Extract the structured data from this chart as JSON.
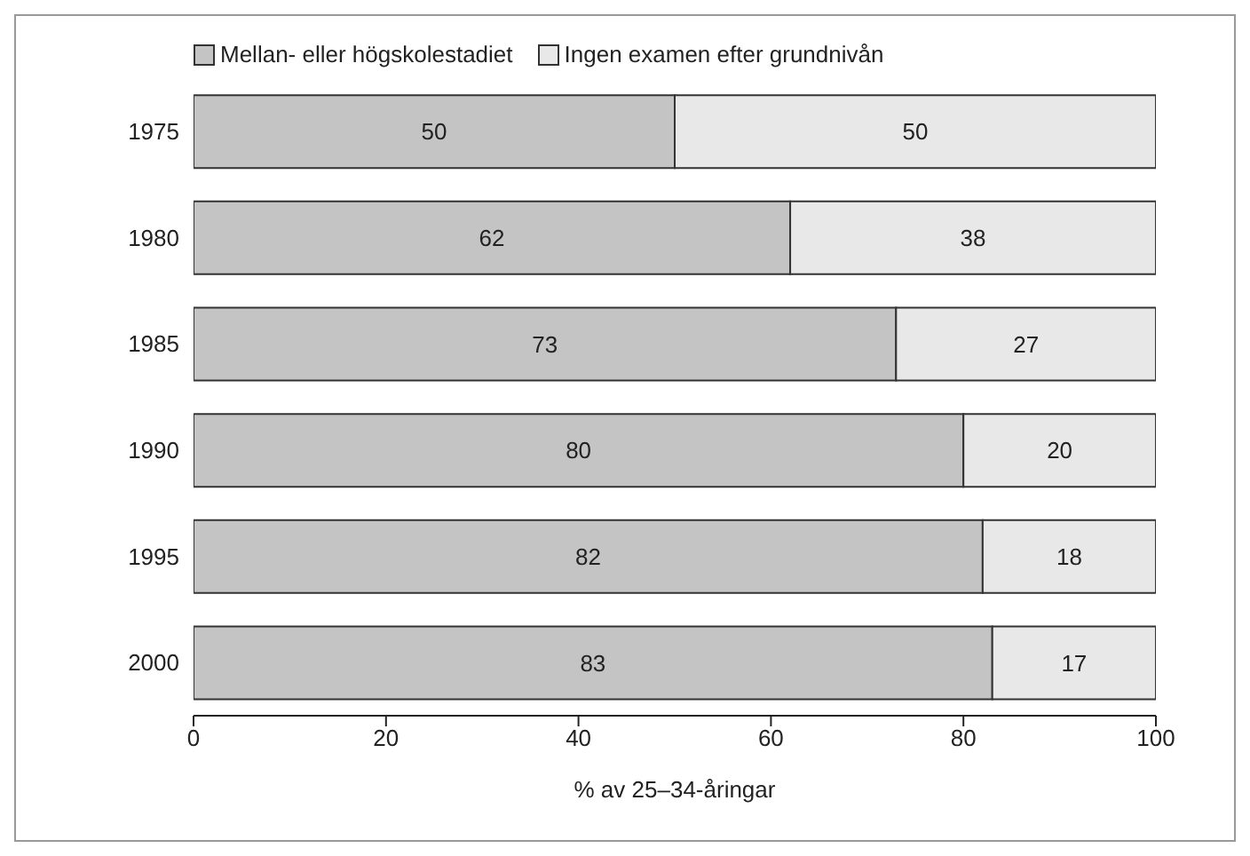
{
  "chart_data": {
    "type": "bar",
    "orientation": "horizontal",
    "stacked": true,
    "xlabel": "% av 25–34-åringar",
    "categories": [
      "1975",
      "1980",
      "1985",
      "1990",
      "1995",
      "2000"
    ],
    "series": [
      {
        "name": "Mellan- eller högskolestadiet",
        "color": "#c4c4c4",
        "values": [
          50,
          62,
          73,
          80,
          82,
          83
        ]
      },
      {
        "name": "Ingen examen efter grundnivån",
        "color": "#e8e8e8",
        "values": [
          50,
          38,
          27,
          20,
          18,
          17
        ]
      }
    ],
    "xlim": [
      0,
      100
    ],
    "xticks": [
      0,
      20,
      40,
      60,
      80,
      100
    ],
    "data_labels": true,
    "legend": "top left",
    "grid": false
  }
}
